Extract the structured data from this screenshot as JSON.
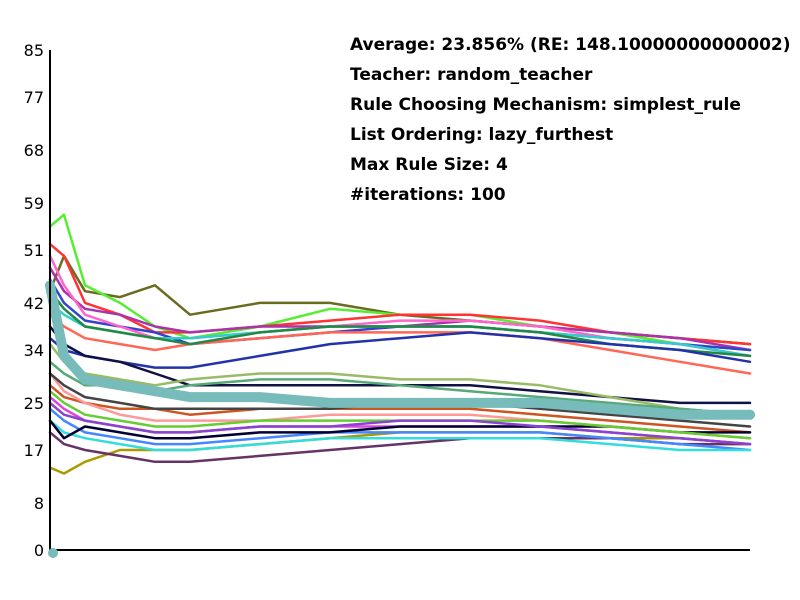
{
  "info": {
    "average": "Average: 23.856% (RE: 148.10000000000002)",
    "teacher": "Teacher: random_teacher",
    "rule_mechanism": "Rule Choosing Mechanism: simplest_rule",
    "list_ordering": "List Ordering: lazy_furthest",
    "max_rule_size": "Max Rule Size: 4",
    "iterations": "#iterations: 100"
  },
  "chart_data": {
    "type": "line",
    "title": "",
    "xlabel": "",
    "ylabel": "",
    "ylim": [
      0,
      85
    ],
    "xlim": [
      0,
      1
    ],
    "yticks": [
      0,
      8,
      17,
      25,
      34,
      42,
      51,
      59,
      68,
      77,
      85
    ],
    "xticks": [],
    "grid": false,
    "legend": "none",
    "x": [
      0,
      0.02,
      0.05,
      0.1,
      0.15,
      0.2,
      0.3,
      0.4,
      0.5,
      0.6,
      0.7,
      0.8,
      0.9,
      1.0
    ],
    "series": [
      {
        "color": "#6b6b1f",
        "values": [
          44,
          50,
          44,
          43,
          45,
          40,
          42,
          42,
          40,
          39,
          38,
          37,
          36,
          35
        ]
      },
      {
        "color": "#55ee33",
        "values": [
          55,
          57,
          45,
          42,
          38,
          36,
          38,
          41,
          40,
          40,
          38,
          37,
          35,
          34
        ]
      },
      {
        "color": "#ff3333",
        "values": [
          52,
          50,
          42,
          40,
          37,
          37,
          38,
          39,
          40,
          40,
          39,
          37,
          36,
          35
        ]
      },
      {
        "color": "#aa33aa",
        "values": [
          48,
          44,
          41,
          40,
          38,
          37,
          38,
          38,
          38,
          39,
          38,
          37,
          36,
          34
        ]
      },
      {
        "color": "#3344cc",
        "values": [
          46,
          42,
          39,
          38,
          37,
          35,
          36,
          37,
          38,
          38,
          37,
          36,
          35,
          34
        ]
      },
      {
        "color": "#ff66cc",
        "values": [
          50,
          45,
          40,
          38,
          36,
          36,
          37,
          38,
          39,
          39,
          38,
          36,
          35,
          33
        ]
      },
      {
        "color": "#33cccc",
        "values": [
          42,
          40,
          38,
          37,
          36,
          36,
          37,
          38,
          38,
          38,
          37,
          36,
          35,
          33
        ]
      },
      {
        "color": "#ff6655",
        "values": [
          40,
          38,
          36,
          35,
          34,
          35,
          36,
          37,
          37,
          37,
          36,
          34,
          32,
          30
        ]
      },
      {
        "color": "#228844",
        "values": [
          44,
          41,
          38,
          37,
          36,
          35,
          37,
          38,
          38,
          38,
          37,
          35,
          34,
          33
        ]
      },
      {
        "color": "#2233aa",
        "values": [
          36,
          34,
          33,
          32,
          31,
          31,
          33,
          35,
          36,
          37,
          36,
          35,
          34,
          32
        ]
      },
      {
        "color": "#111144",
        "values": [
          38,
          35,
          33,
          32,
          30,
          28,
          28,
          28,
          28,
          28,
          27,
          26,
          25,
          25
        ]
      },
      {
        "color": "#99bb66",
        "values": [
          35,
          32,
          30,
          29,
          28,
          29,
          30,
          30,
          29,
          29,
          28,
          26,
          24,
          23
        ]
      },
      {
        "color": "#55aa77",
        "values": [
          32,
          30,
          28,
          28,
          27,
          28,
          29,
          29,
          28,
          27,
          26,
          25,
          24,
          23
        ]
      },
      {
        "color": "#cc5522",
        "values": [
          28,
          26,
          25,
          24,
          24,
          23,
          24,
          24,
          24,
          24,
          23,
          22,
          21,
          20
        ]
      },
      {
        "color": "#aa9900",
        "values": [
          14,
          13,
          15,
          17,
          17,
          17,
          18,
          19,
          20,
          20,
          20,
          19,
          19,
          18
        ]
      },
      {
        "color": "#663366",
        "values": [
          20,
          18,
          17,
          16,
          15,
          15,
          16,
          17,
          18,
          19,
          19,
          19,
          18,
          18
        ]
      },
      {
        "color": "#4488ff",
        "values": [
          24,
          22,
          20,
          19,
          18,
          18,
          19,
          20,
          20,
          20,
          20,
          19,
          18,
          17
        ]
      },
      {
        "color": "#33dddd",
        "values": [
          22,
          20,
          19,
          18,
          17,
          17,
          18,
          19,
          19,
          19,
          19,
          18,
          17,
          17
        ]
      },
      {
        "color": "#dd44dd",
        "values": [
          26,
          24,
          22,
          21,
          20,
          20,
          21,
          21,
          21,
          21,
          21,
          20,
          19,
          18
        ]
      },
      {
        "color": "#000033",
        "values": [
          22,
          19,
          21,
          20,
          19,
          19,
          20,
          20,
          21,
          21,
          21,
          21,
          20,
          20
        ]
      },
      {
        "color": "#ff9999",
        "values": [
          30,
          27,
          25,
          23,
          22,
          22,
          22,
          23,
          23,
          23,
          22,
          21,
          20,
          19
        ]
      },
      {
        "color": "#66cc33",
        "values": [
          27,
          25,
          23,
          22,
          21,
          21,
          22,
          22,
          22,
          22,
          22,
          21,
          20,
          19
        ]
      },
      {
        "color": "#8844cc",
        "values": [
          25,
          23,
          22,
          21,
          20,
          20,
          21,
          21,
          22,
          22,
          21,
          20,
          19,
          18
        ]
      },
      {
        "color": "#444444",
        "values": [
          30,
          28,
          26,
          25,
          24,
          24,
          24,
          24,
          25,
          25,
          24,
          23,
          22,
          21
        ]
      },
      {
        "color": "#77bbbb",
        "values": [
          45,
          33,
          29,
          28,
          27,
          26,
          26,
          25,
          25,
          25,
          25,
          24,
          23,
          23
        ]
      }
    ]
  }
}
